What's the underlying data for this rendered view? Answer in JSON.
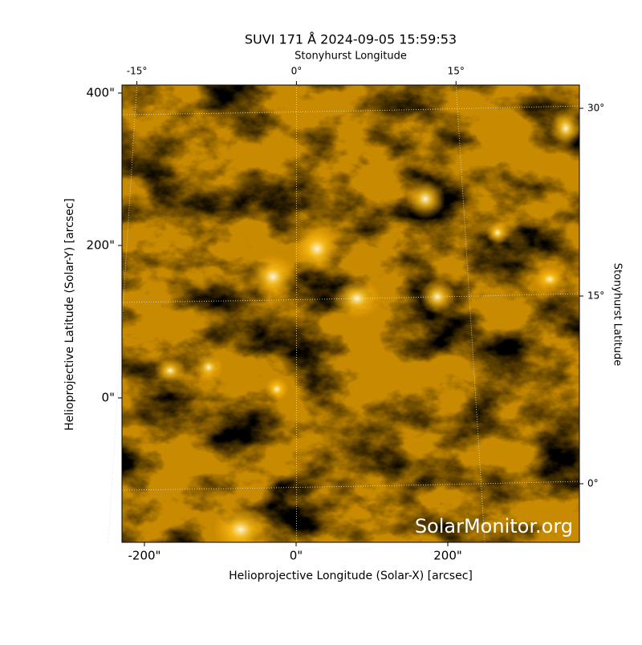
{
  "chart_data": {
    "type": "image",
    "title": "SUVI 171 Å 2024-09-05 15:59:53",
    "xlabel": "Helioprojective Longitude (Solar-X) [arcsec]",
    "ylabel": "Helioprojective Latitude (Solar-Y) [arcsec]",
    "x2label": "Stonyhurst Longitude",
    "y2label": "Stonyhurst Latitude",
    "watermark": "SolarMonitor.org",
    "xlim": [
      -229.6,
      373.5
    ],
    "ylim": [
      -189.5,
      410.5
    ],
    "xticks": [
      {
        "value": -200,
        "label": "-200\""
      },
      {
        "value": 0,
        "label": "0\""
      },
      {
        "value": 200,
        "label": "200\""
      }
    ],
    "yticks": [
      {
        "value": 0,
        "label": "0\""
      },
      {
        "value": 200,
        "label": "200\""
      },
      {
        "value": 400,
        "label": "400\""
      }
    ],
    "x2lim": [
      -16.4,
      26.6
    ],
    "x2ticks": [
      {
        "value": -15,
        "label": "-15°"
      },
      {
        "value": 0,
        "label": "0°"
      },
      {
        "value": 15,
        "label": "15°"
      }
    ],
    "y2lim": [
      -4.68,
      31.86
    ],
    "y2ticks": [
      {
        "value": 0,
        "label": "0°"
      },
      {
        "value": 15,
        "label": "15°"
      },
      {
        "value": 30,
        "label": "30°"
      }
    ],
    "grid": true,
    "colormap": [
      "#000000",
      "#c88a00",
      "#ffffff"
    ]
  }
}
